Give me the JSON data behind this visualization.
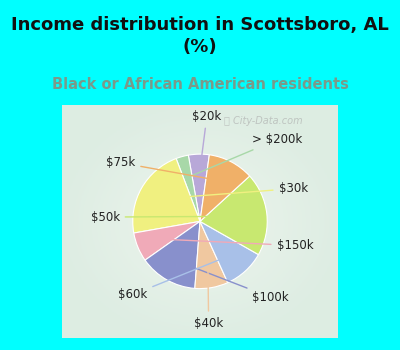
{
  "title": "Income distribution in Scottsboro, AL\n(%)",
  "subtitle": "Black or African American residents",
  "title_color": "#111111",
  "subtitle_color": "#7a9a8a",
  "background_cyan": "#00ffff",
  "background_chart_center": "#e8f4ee",
  "background_chart_edge": "#c8eee8",
  "watermark": "ⓘ City-Data.com",
  "labels": [
    "$20k",
    "> $200k",
    "$30k",
    "$150k",
    "$100k",
    "$40k",
    "$60k",
    "$50k",
    "$75k"
  ],
  "sizes": [
    5,
    3,
    22,
    7,
    14,
    8,
    10,
    20,
    11
  ],
  "colors": [
    "#b8a8d8",
    "#a8d8a8",
    "#f0f080",
    "#f0aab8",
    "#8890cc",
    "#f0c8a0",
    "#a8c0e8",
    "#c8e870",
    "#f0b068"
  ],
  "startangle": 82,
  "label_fontsize": 8.5,
  "title_fontsize": 13,
  "subtitle_fontsize": 10.5
}
